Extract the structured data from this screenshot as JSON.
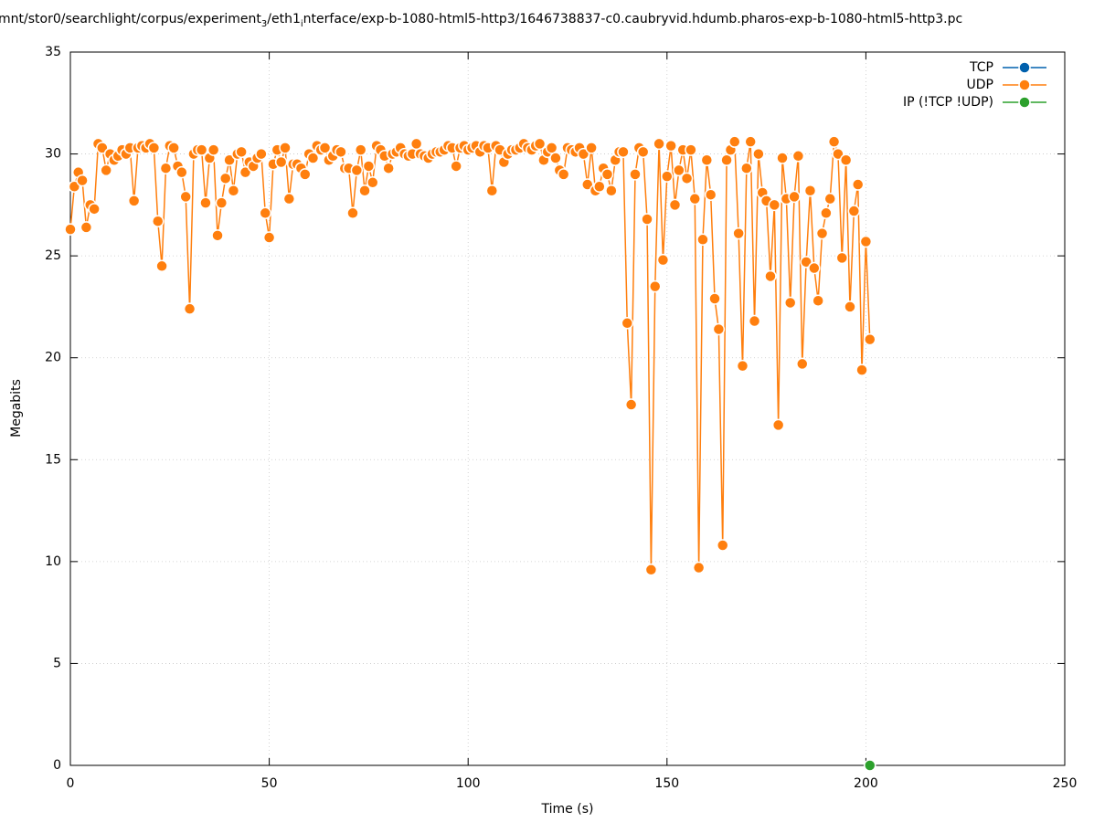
{
  "chart_data": {
    "type": "line",
    "title_parts": [
      "mnt/stor0/searchlight/corpus/experiment",
      "3",
      "/eth1",
      "i",
      "nterface/exp-b-1080-html5-http3/1646738837-c0.caubryvid.hdumb.pharos-exp-b-1080-html5-http3.pc"
    ],
    "x_label": "Time (s)",
    "y_label": "Megabits",
    "xlim": [
      0,
      250
    ],
    "xticks": [
      0,
      50,
      100,
      150,
      200,
      250
    ],
    "ylim": [
      0,
      35
    ],
    "yticks": [
      0,
      5,
      10,
      15,
      20,
      25,
      30,
      35
    ],
    "grid": true,
    "legend": "top-right",
    "series": [
      {
        "name": "TCP",
        "color": "#0060ad",
        "x": [],
        "values": []
      },
      {
        "name": "UDP",
        "color": "#ff7f0e",
        "x": [
          0,
          1,
          2,
          3,
          4,
          5,
          6,
          7,
          8,
          9,
          10,
          11,
          12,
          13,
          14,
          15,
          16,
          17,
          18,
          19,
          20,
          21,
          22,
          23,
          24,
          25,
          26,
          27,
          28,
          29,
          30,
          31,
          32,
          33,
          34,
          35,
          36,
          37,
          38,
          39,
          40,
          41,
          42,
          43,
          44,
          45,
          46,
          47,
          48,
          49,
          50,
          51,
          52,
          53,
          54,
          55,
          56,
          57,
          58,
          59,
          60,
          61,
          62,
          63,
          64,
          65,
          66,
          67,
          68,
          69,
          70,
          71,
          72,
          73,
          74,
          75,
          76,
          77,
          78,
          79,
          80,
          81,
          82,
          83,
          84,
          85,
          86,
          87,
          88,
          89,
          90,
          91,
          92,
          93,
          94,
          95,
          96,
          97,
          98,
          99,
          100,
          101,
          102,
          103,
          104,
          105,
          106,
          107,
          108,
          109,
          110,
          111,
          112,
          113,
          114,
          115,
          116,
          117,
          118,
          119,
          120,
          121,
          122,
          123,
          124,
          125,
          126,
          127,
          128,
          129,
          130,
          131,
          132,
          133,
          134,
          135,
          136,
          137,
          138,
          139,
          140,
          141,
          142,
          143,
          144,
          145,
          146,
          147,
          148,
          149,
          150,
          151,
          152,
          153,
          154,
          155,
          156,
          157,
          158,
          159,
          160,
          161,
          162,
          163,
          164,
          165,
          166,
          167,
          168,
          169,
          170,
          171,
          172,
          173,
          174,
          175,
          176,
          177,
          178,
          179,
          180,
          181,
          182,
          183,
          184,
          185,
          186,
          187,
          188,
          189,
          190,
          191,
          192,
          193,
          194,
          195,
          196,
          197,
          198,
          199,
          200,
          201
        ],
        "values": [
          26.3,
          28.4,
          29.1,
          28.7,
          26.4,
          27.5,
          27.3,
          30.5,
          30.3,
          29.2,
          30.0,
          29.7,
          29.9,
          30.2,
          30.0,
          30.3,
          27.7,
          30.3,
          30.4,
          30.3,
          30.5,
          30.3,
          26.7,
          24.5,
          29.3,
          30.4,
          30.3,
          29.4,
          29.1,
          27.9,
          22.4,
          30.0,
          30.2,
          30.2,
          27.6,
          29.8,
          30.2,
          26.0,
          27.6,
          28.8,
          29.7,
          28.2,
          30.0,
          30.1,
          29.1,
          29.6,
          29.4,
          29.8,
          30.0,
          27.1,
          25.9,
          29.5,
          30.2,
          29.6,
          30.3,
          27.8,
          29.5,
          29.5,
          29.3,
          29.0,
          30.0,
          29.8,
          30.4,
          30.2,
          30.3,
          29.7,
          29.9,
          30.2,
          30.1,
          29.3,
          29.3,
          27.1,
          29.2,
          30.2,
          28.2,
          29.4,
          28.6,
          30.4,
          30.2,
          29.9,
          29.3,
          30.0,
          30.1,
          30.3,
          30.0,
          29.9,
          30.0,
          30.5,
          30.0,
          29.9,
          29.8,
          30.0,
          30.1,
          30.1,
          30.2,
          30.4,
          30.3,
          29.4,
          30.3,
          30.4,
          30.2,
          30.3,
          30.4,
          30.1,
          30.4,
          30.3,
          28.2,
          30.4,
          30.2,
          29.6,
          30.0,
          30.2,
          30.2,
          30.3,
          30.5,
          30.3,
          30.2,
          30.4,
          30.5,
          29.7,
          30.1,
          30.3,
          29.8,
          29.2,
          29.0,
          30.3,
          30.2,
          30.1,
          30.3,
          30.0,
          28.5,
          30.3,
          28.2,
          28.4,
          29.3,
          29.0,
          28.2,
          29.7,
          30.1,
          30.1,
          21.7,
          17.7,
          29.0,
          30.3,
          30.1,
          26.8,
          9.6,
          23.5,
          30.5,
          24.8,
          28.9,
          30.4,
          27.5,
          29.2,
          30.2,
          28.8,
          30.2,
          27.8,
          9.7,
          25.8,
          29.7,
          28.0,
          22.9,
          21.4,
          10.8,
          29.7,
          30.2,
          30.6,
          26.1,
          19.6,
          29.3,
          30.6,
          21.8,
          30.0,
          28.1,
          27.7,
          24.0,
          27.5,
          16.7,
          29.8,
          27.8,
          22.7,
          27.9,
          29.9,
          19.7,
          24.7,
          28.2,
          24.4,
          22.8,
          26.1,
          27.1,
          27.8,
          30.6,
          30.0,
          24.9,
          29.7,
          22.5,
          27.2,
          28.5,
          19.4,
          25.7,
          20.9
        ]
      },
      {
        "name": "IP (!TCP  !UDP)",
        "color": "#2ca02c",
        "x": [
          201
        ],
        "values": [
          0
        ]
      }
    ]
  }
}
